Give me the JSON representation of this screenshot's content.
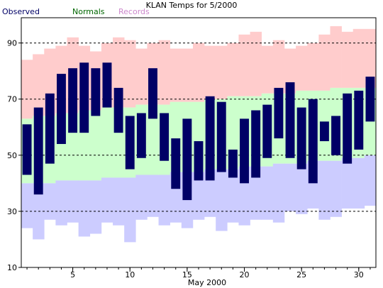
{
  "title": "KLAN Temps for 5/2000",
  "legend": [
    {
      "label": "Observed",
      "color": "#000066"
    },
    {
      "label": "Normals",
      "color": "#006600"
    },
    {
      "label": "Records",
      "color": "#cc88cc"
    }
  ],
  "colors": {
    "records": "#ffcccc",
    "normals": "#ccffcc",
    "lows": "#ccccff",
    "observed": "#000066",
    "grid": "#000000"
  },
  "chart_data": {
    "type": "bar",
    "title": "KLAN Temps for 5/2000",
    "xlabel": "May 2000",
    "ylabel": "",
    "xlim": [
      0.5,
      31.5
    ],
    "ylim": [
      10,
      99
    ],
    "x_ticks": [
      5,
      10,
      15,
      20,
      25,
      30
    ],
    "y_ticks": [
      10,
      30,
      50,
      70,
      90
    ],
    "grid_lines": [
      30,
      50,
      70,
      90
    ],
    "days": [
      1,
      2,
      3,
      4,
      5,
      6,
      7,
      8,
      9,
      10,
      11,
      12,
      13,
      14,
      15,
      16,
      17,
      18,
      19,
      20,
      21,
      22,
      23,
      24,
      25,
      26,
      27,
      28,
      29,
      30,
      31
    ],
    "series": [
      {
        "name": "Records",
        "high": [
          84,
          86,
          88,
          89,
          92,
          89,
          87,
          90,
          92,
          91,
          88,
          90,
          91,
          88,
          88,
          90,
          89,
          89,
          90,
          93,
          94,
          89,
          91,
          88,
          89,
          90,
          93,
          96,
          94,
          95,
          95
        ],
        "low": [
          24,
          20,
          27,
          25,
          26,
          21,
          22,
          26,
          25,
          19,
          27,
          28,
          25,
          26,
          24,
          27,
          28,
          23,
          26,
          25,
          27,
          27,
          26,
          30,
          29,
          31,
          27,
          28,
          31,
          31,
          32
        ]
      },
      {
        "name": "Normals",
        "high": [
          63,
          64,
          64,
          65,
          65,
          66,
          66,
          67,
          67,
          67,
          68,
          68,
          68,
          69,
          69,
          69,
          70,
          70,
          71,
          71,
          71,
          72,
          72,
          72,
          73,
          73,
          73,
          74,
          74,
          74,
          74
        ],
        "low": [
          40,
          40,
          40,
          41,
          41,
          41,
          41,
          42,
          42,
          42,
          43,
          43,
          43,
          44,
          44,
          44,
          45,
          45,
          45,
          46,
          46,
          46,
          47,
          47,
          47,
          48,
          48,
          48,
          49,
          49,
          50
        ]
      },
      {
        "name": "Observed",
        "high": [
          61,
          67,
          72,
          79,
          81,
          83,
          81,
          83,
          74,
          64,
          65,
          81,
          65,
          56,
          63,
          55,
          71,
          69,
          52,
          63,
          66,
          68,
          74,
          76,
          67,
          70,
          62,
          64,
          72,
          73,
          78
        ],
        "low": [
          43,
          36,
          47,
          54,
          58,
          58,
          64,
          67,
          58,
          45,
          49,
          63,
          48,
          38,
          34,
          41,
          41,
          44,
          42,
          40,
          42,
          49,
          56,
          49,
          45,
          40,
          55,
          50,
          47,
          52,
          62
        ]
      }
    ]
  }
}
